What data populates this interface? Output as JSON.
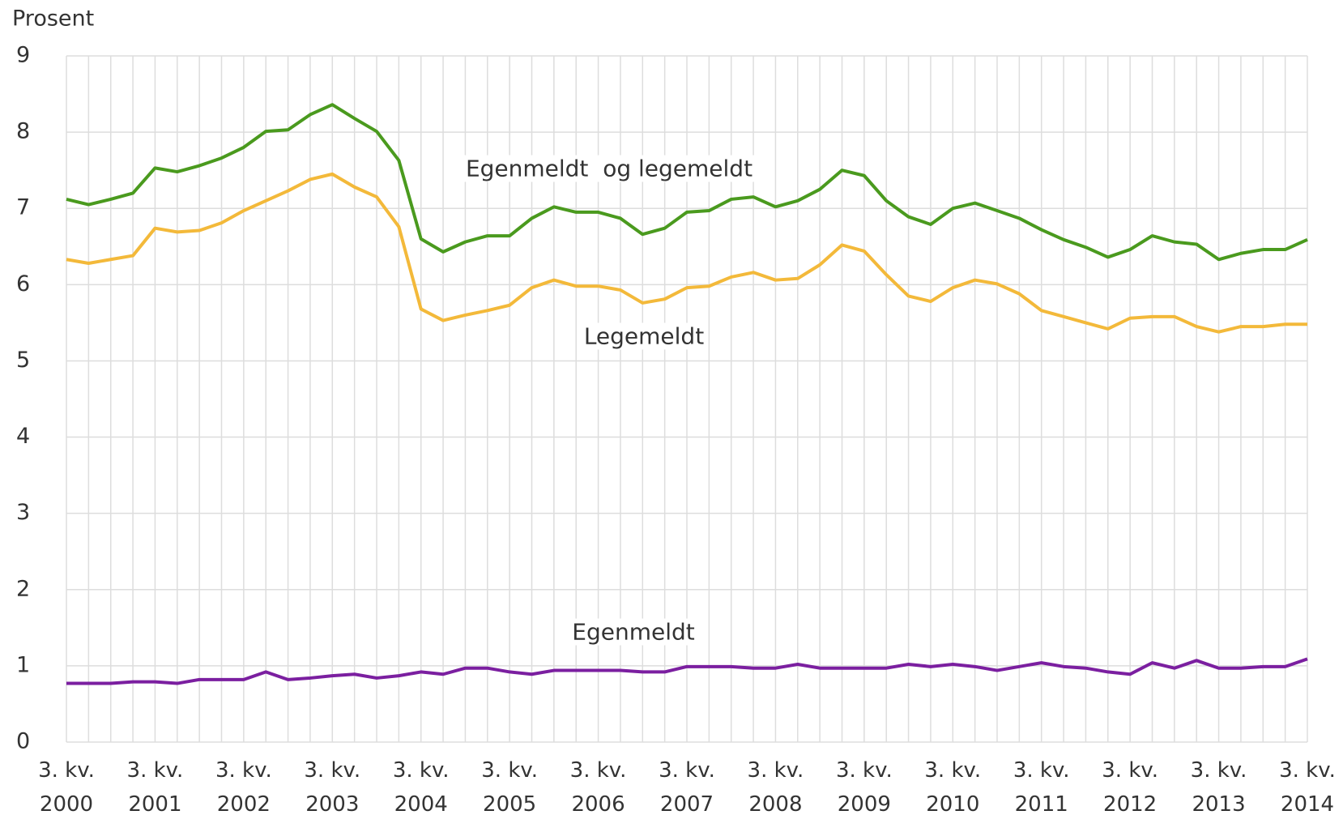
{
  "chart_data": {
    "type": "line",
    "y_axis_label": "Prosent",
    "categories": [
      "3. kv. 2000",
      null,
      null,
      null,
      "3. kv. 2001",
      null,
      null,
      null,
      "3. kv. 2002",
      null,
      null,
      null,
      "3. kv. 2003",
      null,
      null,
      null,
      "3. kv. 2004",
      null,
      null,
      null,
      "3. kv. 2005",
      null,
      null,
      null,
      "3. kv. 2006",
      null,
      null,
      null,
      "3. kv. 2007",
      null,
      null,
      null,
      "3. kv. 2008",
      null,
      null,
      null,
      "3. kv. 2009",
      null,
      null,
      null,
      "3. kv. 2010",
      null,
      null,
      null,
      "3. kv. 2011",
      null,
      null,
      null,
      "3. kv. 2012",
      null,
      null,
      null,
      "3. kv. 2013",
      null,
      null,
      null,
      "3. kv. 2014"
    ],
    "series": [
      {
        "name": "Egenmeldt  og legemeldt",
        "color": "#4a9a1e",
        "values": [
          7.12,
          7.05,
          7.12,
          7.2,
          7.53,
          7.48,
          7.56,
          7.66,
          7.8,
          8.01,
          8.03,
          8.23,
          8.36,
          8.18,
          8.01,
          7.63,
          6.6,
          6.43,
          6.56,
          6.64,
          6.64,
          6.87,
          7.02,
          6.95,
          6.95,
          6.87,
          6.66,
          6.74,
          6.95,
          6.97,
          7.12,
          7.15,
          7.02,
          7.1,
          7.25,
          7.5,
          7.43,
          7.1,
          6.89,
          6.79,
          7.0,
          7.07,
          6.97,
          6.87,
          6.72,
          6.59,
          6.49,
          6.36,
          6.46,
          6.64,
          6.56,
          6.53,
          6.33,
          6.41,
          6.46,
          6.46,
          6.59
        ]
      },
      {
        "name": "Legemeldt",
        "color": "#f3b93a",
        "values": [
          6.33,
          6.28,
          6.33,
          6.38,
          6.74,
          6.69,
          6.71,
          6.81,
          6.97,
          7.1,
          7.23,
          7.38,
          7.45,
          7.28,
          7.15,
          6.76,
          5.68,
          5.53,
          5.6,
          5.66,
          5.73,
          5.96,
          6.06,
          5.98,
          5.98,
          5.93,
          5.76,
          5.81,
          5.96,
          5.98,
          6.1,
          6.16,
          6.06,
          6.08,
          6.26,
          6.52,
          6.44,
          6.13,
          5.85,
          5.78,
          5.96,
          6.06,
          6.01,
          5.88,
          5.66,
          5.58,
          5.5,
          5.42,
          5.56,
          5.58,
          5.58,
          5.45,
          5.38,
          5.45,
          5.45,
          5.48,
          5.48
        ]
      },
      {
        "name": "Egenmeldt",
        "color": "#7b1fa0",
        "values": [
          0.77,
          0.77,
          0.77,
          0.79,
          0.79,
          0.77,
          0.82,
          0.82,
          0.82,
          0.92,
          0.82,
          0.84,
          0.87,
          0.89,
          0.84,
          0.87,
          0.92,
          0.89,
          0.97,
          0.97,
          0.92,
          0.89,
          0.94,
          0.94,
          0.94,
          0.94,
          0.92,
          0.92,
          0.99,
          0.99,
          0.99,
          0.97,
          0.97,
          1.02,
          0.97,
          0.97,
          0.97,
          0.97,
          1.02,
          0.99,
          1.02,
          0.99,
          0.94,
          0.99,
          1.04,
          0.99,
          0.97,
          0.92,
          0.89,
          1.04,
          0.97,
          1.07,
          0.97,
          0.97,
          0.99,
          0.99,
          1.09
        ]
      }
    ],
    "ylim": [
      0,
      9
    ],
    "yticks": [
      0,
      1,
      2,
      3,
      4,
      5,
      6,
      7,
      8,
      9
    ],
    "grid": true
  }
}
